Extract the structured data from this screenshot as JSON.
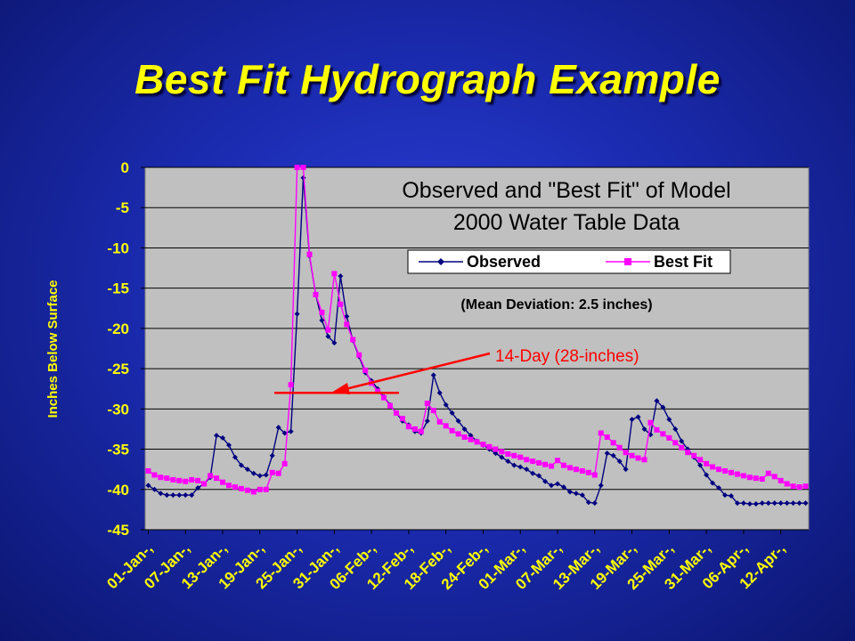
{
  "slide": {
    "title": "Best Fit Hydrograph Example"
  },
  "chart_data": {
    "type": "line",
    "title": "Observed and \"Best Fit\" of Model",
    "subtitle": "2000 Water Table Data",
    "ylabel": "Inches Below Surface",
    "xlabel": "",
    "ylim": [
      -45,
      0
    ],
    "yticks": [
      "0",
      "-5",
      "-10",
      "-15",
      "-20",
      "-25",
      "-30",
      "-35",
      "-40",
      "-45"
    ],
    "x_tick_labels": [
      "01-Jan-,",
      "07-Jan-,",
      "13-Jan-,",
      "19-Jan-,",
      "25-Jan-,",
      "31-Jan-,",
      "06-Feb-,",
      "12-Feb-,",
      "18-Feb-,",
      "24-Feb-,",
      "01-Mar-,",
      "07-Mar-,",
      "13-Mar-,",
      "19-Mar-,",
      "25-Mar-,",
      "31-Mar-,",
      "06-Apr-,",
      "12-Apr-,"
    ],
    "legend": {
      "position": "top-right",
      "entries": [
        "Observed",
        "Best Fit"
      ]
    },
    "note": "(Mean Deviation: 2.5 inches)",
    "annotation": {
      "text": "14-Day (28-inches)",
      "level": -28
    },
    "grid": true,
    "colors": {
      "observed": "#000080",
      "best_fit": "#ff00ff",
      "annotation": "#ff0000",
      "plot_bg": "#c0c0c0"
    },
    "series": [
      {
        "name": "Observed",
        "values": [
          -39.5,
          -40,
          -40.5,
          -40.7,
          -40.7,
          -40.7,
          -40.7,
          -40.7,
          -39.8,
          -39.3,
          -38.5,
          -33.3,
          -33.6,
          -34.5,
          -36,
          -37,
          -37.5,
          -38,
          -38.3,
          -38.2,
          -35.8,
          -32.3,
          -33,
          -32.8,
          -18.2,
          -1.3,
          -11,
          -15.8,
          -19,
          -21,
          -21.8,
          -13.5,
          -18.5,
          -21.5,
          -23.5,
          -25.5,
          -26.5,
          -27.5,
          -28.5,
          -29.5,
          -30.5,
          -31.5,
          -32,
          -32.8,
          -33,
          -31.5,
          -25.8,
          -28,
          -29.5,
          -30.5,
          -31.5,
          -32.5,
          -33.3,
          -34,
          -34.5,
          -35,
          -35.5,
          -36,
          -36.5,
          -37,
          -37.2,
          -37.5,
          -38,
          -38.3,
          -39,
          -39.5,
          -39.3,
          -39.7,
          -40.3,
          -40.5,
          -40.7,
          -41.6,
          -41.7,
          -39.5,
          -35.5,
          -35.8,
          -36.5,
          -37.5,
          -31.3,
          -31,
          -32.5,
          -33.2,
          -29,
          -29.8,
          -31.3,
          -32.5,
          -34,
          -35,
          -36,
          -37,
          -38.2,
          -39.2,
          -39.8,
          -40.7,
          -40.8,
          -41.7,
          -41.7,
          -41.8,
          -41.8,
          -41.7,
          -41.7,
          -41.7,
          -41.7,
          -41.7,
          -41.7,
          -41.7,
          -41.7
        ]
      },
      {
        "name": "Best Fit",
        "values": [
          -37.7,
          -38.2,
          -38.5,
          -38.6,
          -38.8,
          -38.9,
          -39.0,
          -38.8,
          -38.9,
          -39.3,
          -38.3,
          -38.6,
          -39.1,
          -39.5,
          -39.7,
          -39.9,
          -40.1,
          -40.3,
          -40.0,
          -40.0,
          -37.9,
          -38.0,
          -36.8,
          -27.0,
          0,
          0,
          -10.8,
          -15.8,
          -18.0,
          -20.2,
          -13.2,
          -17.0,
          -19.5,
          -21.4,
          -23.3,
          -25.2,
          -26.8,
          -27.8,
          -28.6,
          -29.6,
          -30.5,
          -31.2,
          -32.2,
          -32.5,
          -32.8,
          -29.3,
          -30.2,
          -31.6,
          -32.1,
          -32.7,
          -33.1,
          -33.5,
          -33.8,
          -34.1,
          -34.4,
          -34.7,
          -35.0,
          -35.3,
          -35.6,
          -35.8,
          -36.0,
          -36.3,
          -36.5,
          -36.7,
          -36.9,
          -37.1,
          -36.4,
          -37.0,
          -37.3,
          -37.5,
          -37.7,
          -37.9,
          -38.2,
          -33.0,
          -33.5,
          -34.2,
          -34.8,
          -35.4,
          -35.8,
          -36.1,
          -36.3,
          -31.7,
          -32.6,
          -33.1,
          -33.6,
          -34.2,
          -34.8,
          -35.4,
          -35.8,
          -36.3,
          -36.8,
          -37.2,
          -37.5,
          -37.7,
          -37.9,
          -38.1,
          -38.3,
          -38.5,
          -38.6,
          -38.7,
          -38.0,
          -38.4,
          -38.9,
          -39.3,
          -39.6,
          -39.7,
          -39.6
        ]
      }
    ]
  }
}
